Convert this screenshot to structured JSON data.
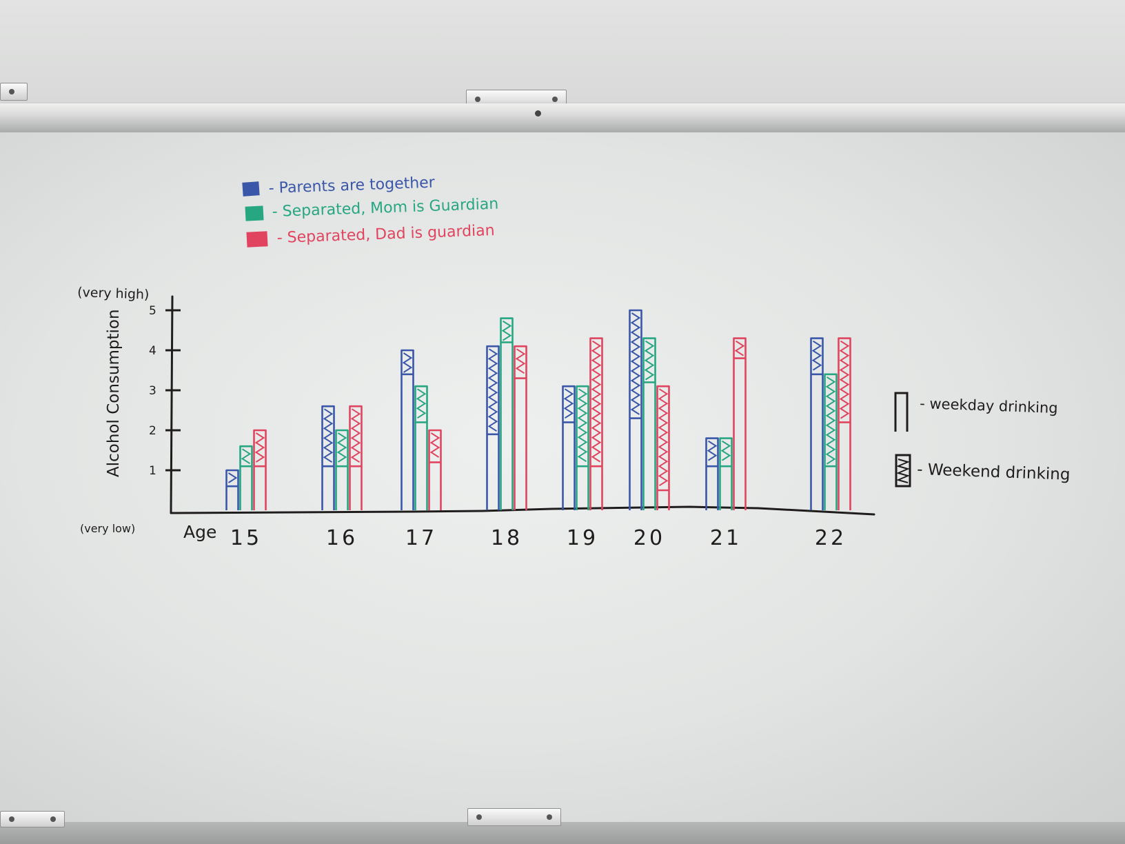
{
  "chart_data": {
    "type": "bar",
    "title": "",
    "xlabel": "Age",
    "ylabel": "Alcohol Consumption",
    "y_top_label": "(very high)",
    "y_bottom_label": "(very low)",
    "y_ticks": [
      "1",
      "2",
      "3",
      "4",
      "5"
    ],
    "ylim": [
      0,
      5
    ],
    "categories": [
      "15",
      "16",
      "17",
      "18",
      "19",
      "20",
      "21",
      "22"
    ],
    "stacked": true,
    "stack_parts": [
      "weekday",
      "weekend"
    ],
    "series": [
      {
        "name": "Parents are together",
        "color": "#3a56a8",
        "weekday": [
          0.6,
          1.1,
          3.4,
          1.9,
          2.2,
          2.3,
          1.1,
          3.4
        ],
        "total": [
          1.0,
          2.6,
          4.0,
          4.1,
          3.1,
          5.0,
          1.8,
          4.3
        ]
      },
      {
        "name": "Separated, Mom is Guardian",
        "color": "#27a682",
        "weekday": [
          1.1,
          1.1,
          2.2,
          4.2,
          1.1,
          3.2,
          1.1,
          1.1
        ],
        "total": [
          1.6,
          2.0,
          3.1,
          4.8,
          3.1,
          4.3,
          1.8,
          3.4
        ]
      },
      {
        "name": "Separated, Dad is guardian",
        "color": "#e0445f",
        "weekday": [
          1.1,
          1.1,
          1.2,
          3.3,
          1.1,
          0.5,
          3.8,
          2.2
        ],
        "total": [
          2.0,
          2.6,
          2.0,
          4.1,
          4.3,
          3.1,
          4.3,
          4.3
        ]
      }
    ],
    "legend": {
      "placement": "top-left",
      "entries": [
        {
          "label": "- Parents are together",
          "color": "#3a56a8"
        },
        {
          "label": "- Separated, Mom is Guardian",
          "color": "#27a682"
        },
        {
          "label": "- Separated, Dad is guardian",
          "color": "#e0445f"
        }
      ]
    },
    "style_legend": {
      "placement": "right",
      "entries": [
        {
          "label": "- weekday drinking",
          "style": "open-bar"
        },
        {
          "label": "- Weekend drinking",
          "style": "zigzag-bar"
        }
      ]
    },
    "ink_color": "#1f1c1c",
    "grid": false
  }
}
